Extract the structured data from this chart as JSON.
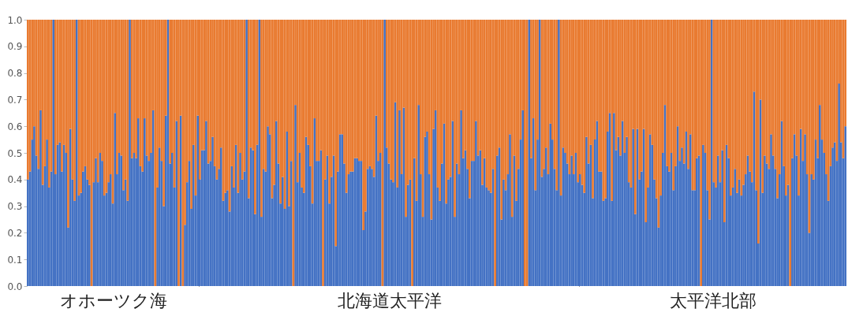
{
  "chart_data": [
    {
      "type": "bar",
      "stacked": true,
      "xlabel": "オホーツク海",
      "tick_labels": "y",
      "ylim": [
        0,
        1
      ],
      "yticks": [
        {
          "value": 0,
          "label": "0.0"
        },
        0.1,
        0.2,
        0.3,
        0.4,
        0.5,
        0.6,
        0.7,
        0.8,
        0.9,
        {
          "value": 1,
          "label": "1.0"
        }
      ],
      "categories": [
        null,
        null,
        null,
        null,
        null,
        null,
        null,
        null,
        null,
        null,
        null,
        null,
        null,
        null,
        null,
        null,
        null,
        null,
        null,
        null,
        null,
        null,
        null,
        null,
        null,
        null,
        null,
        null,
        null,
        null,
        null,
        null,
        null,
        null,
        null,
        null,
        null,
        null,
        null,
        null,
        null,
        null,
        null,
        null,
        null,
        null,
        null,
        null,
        null,
        null,
        null,
        null,
        null,
        null,
        null,
        null,
        null,
        null,
        null,
        null,
        null,
        null,
        null,
        null,
        null,
        null,
        null,
        null,
        null,
        null,
        null,
        null,
        null,
        null,
        null,
        null,
        null,
        null,
        null,
        null,
        null
      ],
      "series": [
        {
          "color": "#4472c4",
          "values": [
            0.4,
            0.43,
            0.55,
            0.6,
            0.49,
            0.44,
            0.66,
            0.38,
            0.45,
            0.55,
            0.37,
            0.43,
            1,
            0.42,
            0.53,
            0.54,
            0.43,
            0.53,
            0.5,
            0.22,
            0.59,
            0.4,
            0.32,
            1,
            0.34,
            0.35,
            0.43,
            0.45,
            0.4,
            0.38,
            0,
            0.39,
            0.48,
            0.39,
            0.5,
            0.47,
            0.34,
            0.35,
            0.39,
            0.42,
            0.31,
            0.65,
            0.42,
            0.5,
            0.49,
            0.36,
            0.4,
            0.32,
            1,
            0.48,
            0.5,
            0.48,
            0.63,
            0.45,
            0.43,
            0.63,
            0.49,
            0.47,
            0.5,
            0.66,
            0,
            0.37,
            0.52,
            0.47,
            0.3,
            0.64,
            1,
            0.46,
            0.5,
            0.37,
            0.62,
            0,
            0.64,
            0,
            0.23,
            0.39,
            0.47,
            0.29,
            0.53,
            0.34,
            0.64
          ]
        },
        {
          "color": "#e97b31",
          "values": [
            0.6,
            0.57,
            0.45,
            0.4,
            0.51,
            0.56,
            0.34,
            0.62,
            0.55,
            0.45,
            0.63,
            0.57,
            0,
            0.58,
            0.47,
            0.46,
            0.57,
            0.47,
            0.5,
            0.78,
            0.41,
            0.6,
            0.68,
            0,
            0.66,
            0.65,
            0.57,
            0.55,
            0.6,
            0.62,
            1,
            0.61,
            0.52,
            0.61,
            0.5,
            0.53,
            0.66,
            0.65,
            0.61,
            0.58,
            0.69,
            0.35,
            0.58,
            0.5,
            0.51,
            0.64,
            0.6,
            0.68,
            0,
            0.52,
            0.5,
            0.52,
            0.37,
            0.55,
            0.57,
            0.37,
            0.51,
            0.53,
            0.5,
            0.34,
            1,
            0.63,
            0.48,
            0.53,
            0.7,
            0.36,
            0,
            0.54,
            0.5,
            0.63,
            0.38,
            1,
            0.36,
            1,
            0.77,
            0.61,
            0.53,
            0.71,
            0.47,
            0.66,
            0.36
          ]
        }
      ]
    },
    {
      "type": "bar",
      "stacked": true,
      "xlabel": "北海道太平洋",
      "tick_labels": false,
      "ylim": [
        0,
        1
      ],
      "categories": [
        null,
        null,
        null,
        null,
        null,
        null,
        null,
        null,
        null,
        null,
        null,
        null,
        null,
        null,
        null,
        null,
        null,
        null,
        null,
        null,
        null,
        null,
        null,
        null,
        null,
        null,
        null,
        null,
        null,
        null,
        null,
        null,
        null,
        null,
        null,
        null,
        null,
        null,
        null,
        null,
        null,
        null,
        null,
        null,
        null,
        null,
        null,
        null,
        null,
        null,
        null,
        null,
        null,
        null,
        null,
        null,
        null,
        null,
        null,
        null,
        null,
        null,
        null,
        null,
        null,
        null,
        null,
        null,
        null,
        null,
        null,
        null,
        null,
        null,
        null,
        null,
        null,
        null,
        null,
        null,
        null,
        null,
        null,
        null,
        null,
        null,
        null,
        null,
        null,
        null,
        null,
        null,
        null,
        null,
        null,
        null,
        null,
        null,
        null,
        null,
        null,
        null,
        null,
        null,
        null,
        null,
        null,
        null,
        null,
        null,
        null,
        null,
        null,
        null,
        null,
        null,
        null,
        null,
        null,
        null,
        null,
        null,
        null,
        null,
        null,
        null,
        null,
        null,
        null,
        null,
        null,
        null,
        null,
        null,
        null,
        null,
        null,
        null,
        null,
        null,
        null,
        null,
        null,
        null,
        null,
        null,
        null,
        null,
        null,
        null,
        null,
        null,
        null,
        null,
        null,
        null,
        null,
        null,
        null,
        null,
        null,
        null,
        null,
        null,
        null,
        null,
        null,
        null,
        null,
        null,
        null,
        null,
        null,
        null,
        null,
        null,
        null,
        null,
        null
      ],
      "series": [
        {
          "color": "#4472c4",
          "values": [
            0.4,
            0.51,
            0.51,
            0.62,
            0.46,
            0.47,
            0.56,
            0.45,
            0.4,
            0.44,
            0.52,
            0.32,
            0.35,
            0.36,
            0.28,
            0.45,
            0.37,
            0.53,
            0.35,
            0.5,
            0.4,
            0.43,
            1,
            0.33,
            0.52,
            0.51,
            0.27,
            0.53,
            1,
            0.26,
            0.44,
            0.43,
            0.6,
            0.57,
            0.33,
            0.38,
            0.62,
            0.46,
            0.31,
            0.41,
            0.29,
            0.58,
            0.3,
            0.47,
            0,
            0.68,
            0.39,
            0.5,
            0.37,
            0.35,
            0.56,
            0.53,
            0.45,
            0.31,
            0.63,
            0.47,
            0.47,
            0.51,
            0,
            0.4,
            0.49,
            0.31,
            0.41,
            0.49,
            0.15,
            0.43,
            0.57,
            0.57,
            0.46,
            0.35,
            0.42,
            0.43,
            0.43,
            0.48,
            0.48,
            0.47,
            0.47,
            0.21,
            0.28,
            0.44,
            0.45,
            0.44,
            0.41,
            0.64,
            0.47,
            0.5,
            0,
            1,
            0.52,
            0.46,
            0.4,
            0.39,
            0.69,
            0.37,
            0.66,
            0.42,
            0.67,
            0.26,
            0.38,
            0.4,
            0,
            0.48,
            0.32,
            0.68,
            0.42,
            0.26,
            0.56,
            0.58,
            0.42,
            0.25,
            0.59,
            0.66,
            0.37,
            0.32,
            0.46,
            0.61,
            0.31,
            0.4,
            0.41,
            0.62,
            0.26,
            0.46,
            0.42,
            0.66,
            0.48,
            0.51,
            0.44,
            0.33,
            0.47,
            0.47,
            0.62,
            0.49,
            0.51,
            0.38,
            0.48,
            0.37,
            0.36,
            0.35,
            0.44,
            0,
            0.49,
            0.52,
            0.25,
            0.4,
            0.36,
            0.42,
            0.57,
            0.26,
            0.49,
            0.32,
            0.44,
            0.55,
            0.66,
            0,
            0,
            1,
            0.48,
            0.63,
            0.36,
            0.55,
            1,
            0.41,
            0.44,
            0.52,
            0.42,
            0.61,
            0.55,
            0.44,
            0.36,
            1,
            0.34,
            0.52,
            0.5,
            0.46,
            0.42,
            0.49,
            0.42,
            0.5,
            0.39
          ]
        },
        {
          "color": "#e97b31",
          "values": [
            0.6,
            0.49,
            0.49,
            0.38,
            0.54,
            0.53,
            0.44,
            0.55,
            0.6,
            0.56,
            0.48,
            0.68,
            0.65,
            0.64,
            0.72,
            0.55,
            0.63,
            0.47,
            0.65,
            0.5,
            0.6,
            0.57,
            0,
            0.67,
            0.48,
            0.49,
            0.73,
            0.47,
            0,
            0.74,
            0.56,
            0.57,
            0.4,
            0.43,
            0.67,
            0.62,
            0.38,
            0.54,
            0.69,
            0.59,
            0.71,
            0.42,
            0.7,
            0.53,
            1,
            0.32,
            0.61,
            0.5,
            0.63,
            0.65,
            0.44,
            0.47,
            0.55,
            0.69,
            0.37,
            0.53,
            0.53,
            0.49,
            1,
            0.6,
            0.51,
            0.69,
            0.59,
            0.51,
            0.85,
            0.57,
            0.43,
            0.43,
            0.54,
            0.65,
            0.58,
            0.57,
            0.57,
            0.52,
            0.52,
            0.53,
            0.53,
            0.79,
            0.72,
            0.56,
            0.55,
            0.56,
            0.59,
            0.36,
            0.53,
            0.5,
            1,
            0,
            0.48,
            0.54,
            0.6,
            0.61,
            0.31,
            0.63,
            0.34,
            0.58,
            0.33,
            0.74,
            0.62,
            0.6,
            1,
            0.52,
            0.68,
            0.32,
            0.58,
            0.74,
            0.44,
            0.42,
            0.58,
            0.75,
            0.41,
            0.34,
            0.63,
            0.68,
            0.54,
            0.39,
            0.69,
            0.6,
            0.59,
            0.38,
            0.74,
            0.54,
            0.58,
            0.34,
            0.52,
            0.49,
            0.56,
            0.67,
            0.53,
            0.53,
            0.38,
            0.51,
            0.49,
            0.62,
            0.52,
            0.63,
            0.64,
            0.65,
            0.56,
            1,
            0.51,
            0.48,
            0.75,
            0.6,
            0.64,
            0.58,
            0.43,
            0.74,
            0.51,
            0.68,
            0.56,
            0.45,
            0.34,
            1,
            1,
            0,
            0.52,
            0.37,
            0.64,
            0.45,
            0,
            0.59,
            0.56,
            0.48,
            0.58,
            0.39,
            0.45,
            0.56,
            0.64,
            0,
            0.66,
            0.48,
            0.5,
            0.54,
            0.58,
            0.51,
            0.58,
            0.5,
            0.61
          ]
        }
      ]
    },
    {
      "type": "bar",
      "stacked": true,
      "xlabel": "太平洋北部",
      "tick_labels": false,
      "ylim": [
        0,
        1
      ],
      "categories": [
        null,
        null,
        null,
        null,
        null,
        null,
        null,
        null,
        null,
        null,
        null,
        null,
        null,
        null,
        null,
        null,
        null,
        null,
        null,
        null,
        null,
        null,
        null,
        null,
        null,
        null,
        null,
        null,
        null,
        null,
        null,
        null,
        null,
        null,
        null,
        null,
        null,
        null,
        null,
        null,
        null,
        null,
        null,
        null,
        null,
        null,
        null,
        null,
        null,
        null,
        null,
        null,
        null,
        null,
        null,
        null,
        null,
        null,
        null,
        null,
        null,
        null,
        null,
        null,
        null,
        null,
        null,
        null,
        null,
        null,
        null,
        null,
        null,
        null,
        null,
        null,
        null,
        null,
        null,
        null,
        null,
        null,
        null,
        null,
        null,
        null,
        null,
        null,
        null,
        null,
        null,
        null,
        null,
        null,
        null,
        null,
        null,
        null,
        null,
        null,
        null,
        null,
        null,
        null,
        null,
        null,
        null,
        null,
        null,
        null,
        null,
        null,
        null,
        null,
        null,
        null,
        null,
        null,
        null,
        null,
        null,
        null,
        null,
        null,
        null,
        null
      ],
      "series": [
        {
          "color": "#4472c4",
          "values": [
            0.42,
            0.38,
            0.35,
            0.56,
            0.46,
            0.53,
            0.33,
            0.55,
            0.62,
            0.43,
            0.43,
            0.32,
            0.33,
            0.58,
            0.65,
            0.32,
            0.65,
            0.51,
            0.56,
            0.49,
            0.62,
            0.5,
            0.56,
            0.39,
            0.37,
            0.59,
            0.27,
            0.59,
            0.4,
            0.43,
            0.59,
            0.24,
            0.37,
            0.57,
            0.53,
            0.4,
            0.33,
            0.22,
            0.34,
            0.5,
            0.68,
            0.45,
            0.43,
            0.5,
            0.36,
            0.45,
            0.6,
            0.47,
            0.52,
            0.46,
            0.58,
            0.44,
            0.57,
            0.36,
            0.36,
            0.48,
            0.49,
            0,
            0.53,
            0.5,
            0.36,
            0.25,
            1,
            0.39,
            0.37,
            0.49,
            0.39,
            0.51,
            0.24,
            0.53,
            0.48,
            0.34,
            0.37,
            0.44,
            0.35,
            0.4,
            0.34,
            0.38,
            0.42,
            0.49,
            0.43,
            0.39,
            0.73,
            0.36,
            0.16,
            0.7,
            0.35,
            0.49,
            0.46,
            0.44,
            0.57,
            0.49,
            0.44,
            0.33,
            0.42,
            0.62,
            0.45,
            0.34,
            0.38,
            0,
            0.48,
            0.57,
            0.49,
            0.34,
            0.59,
            0.47,
            0.57,
            0.42,
            0.2,
            0.42,
            0.4,
            0.55,
            0.48,
            0.68,
            0.55,
            0.5,
            0.42,
            0.32,
            0.45,
            0.52,
            0.54,
            0.47,
            0.76,
            0.54,
            0.48,
            0.6
          ]
        },
        {
          "color": "#e97b31",
          "values": [
            0.58,
            0.62,
            0.65,
            0.44,
            0.54,
            0.47,
            0.67,
            0.45,
            0.38,
            0.57,
            0.57,
            0.68,
            0.67,
            0.42,
            0.35,
            0.68,
            0.35,
            0.49,
            0.44,
            0.51,
            0.38,
            0.5,
            0.44,
            0.61,
            0.63,
            0.41,
            0.73,
            0.41,
            0.6,
            0.57,
            0.41,
            0.76,
            0.63,
            0.43,
            0.47,
            0.6,
            0.67,
            0.78,
            0.66,
            0.5,
            0.32,
            0.55,
            0.57,
            0.5,
            0.64,
            0.55,
            0.4,
            0.53,
            0.48,
            0.54,
            0.42,
            0.56,
            0.43,
            0.64,
            0.64,
            0.52,
            0.51,
            1,
            0.47,
            0.5,
            0.64,
            0.75,
            0,
            0.61,
            0.63,
            0.51,
            0.61,
            0.49,
            0.76,
            0.47,
            0.52,
            0.66,
            0.63,
            0.56,
            0.65,
            0.6,
            0.66,
            0.62,
            0.58,
            0.51,
            0.57,
            0.61,
            0.27,
            0.64,
            0.84,
            0.3,
            0.65,
            0.51,
            0.54,
            0.56,
            0.43,
            0.51,
            0.56,
            0.67,
            0.58,
            0.38,
            0.55,
            0.66,
            0.62,
            1,
            0.52,
            0.43,
            0.51,
            0.66,
            0.41,
            0.53,
            0.43,
            0.58,
            0.8,
            0.58,
            0.6,
            0.45,
            0.52,
            0.32,
            0.45,
            0.5,
            0.58,
            0.68,
            0.55,
            0.48,
            0.46,
            0.53,
            0.24,
            0.46,
            0.52,
            0.4
          ]
        }
      ]
    }
  ]
}
